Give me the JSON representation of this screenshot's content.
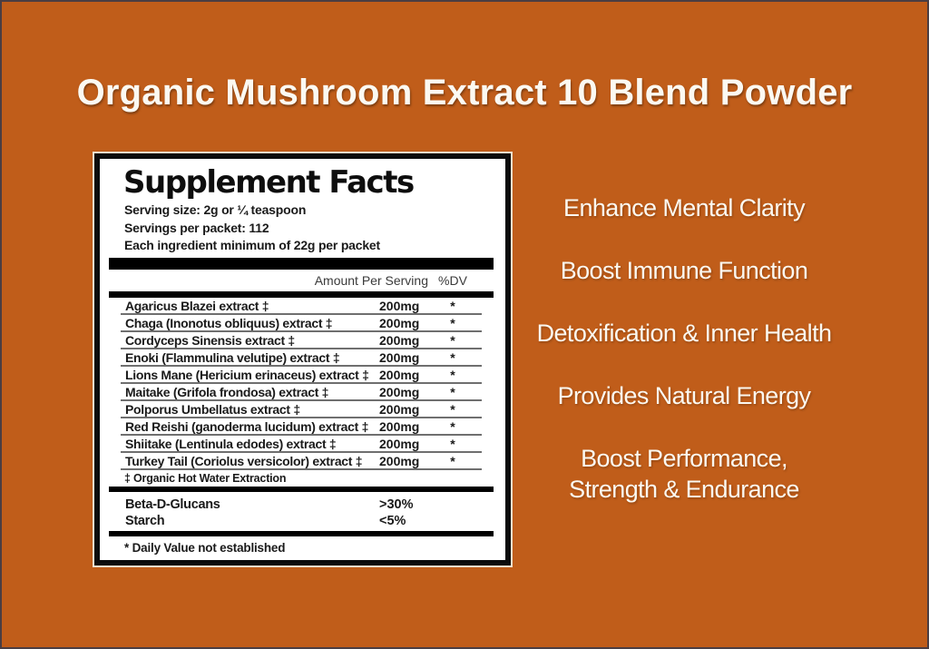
{
  "title": "Organic Mushroom Extract 10 Blend Powder",
  "colors": {
    "background": "#c05d1a",
    "frame": "#4a3d42",
    "panel_background": "#ffffff",
    "panel_border": "#0c0c0c",
    "light_text": "#fbf9f2"
  },
  "label": {
    "heading": "Supplement Facts",
    "serving_size": "Serving size: 2g or ¼ teaspoon",
    "servings_per_packet": "Servings per packet: 112",
    "ingredient_minimum": "Each ingredient minimum of 22g per packet",
    "columns": {
      "amount": "Amount Per Serving",
      "dv": "%DV"
    },
    "ingredients": [
      {
        "name": "Agaricus Blazei extract ‡",
        "amount": "200mg",
        "dv": "*"
      },
      {
        "name": "Chaga (Inonotus obliquus) extract ‡",
        "amount": "200mg",
        "dv": "*"
      },
      {
        "name": "Cordyceps Sinensis extract ‡",
        "amount": "200mg",
        "dv": "*"
      },
      {
        "name": "Enoki (Flammulina velutipe) extract ‡",
        "amount": "200mg",
        "dv": "*"
      },
      {
        "name": "Lions Mane (Hericium erinaceus) extract ‡",
        "amount": "200mg",
        "dv": "*"
      },
      {
        "name": "Maitake (Grifola frondosa) extract ‡",
        "amount": "200mg",
        "dv": "*"
      },
      {
        "name": "Polporus Umbellatus extract ‡",
        "amount": "200mg",
        "dv": "*"
      },
      {
        "name": "Red Reishi (ganoderma lucidum) extract ‡",
        "amount": "200mg",
        "dv": "*"
      },
      {
        "name": "Shiitake (Lentinula edodes) extract ‡",
        "amount": "200mg",
        "dv": "*"
      },
      {
        "name": "Turkey Tail (Coriolus versicolor) extract ‡",
        "amount": "200mg",
        "dv": "*"
      }
    ],
    "extraction_note": "‡ Organic Hot Water Extraction",
    "composition": [
      {
        "name": "Beta-D-Glucans",
        "amount": ">30%"
      },
      {
        "name": "Starch",
        "amount": "<5%"
      }
    ],
    "footnote": "* Daily Value not established"
  },
  "benefits": [
    "Enhance Mental Clarity",
    "Boost Immune Function",
    "Detoxification & Inner Health",
    "Provides Natural Energy",
    "Boost Performance,\nStrength & Endurance"
  ]
}
